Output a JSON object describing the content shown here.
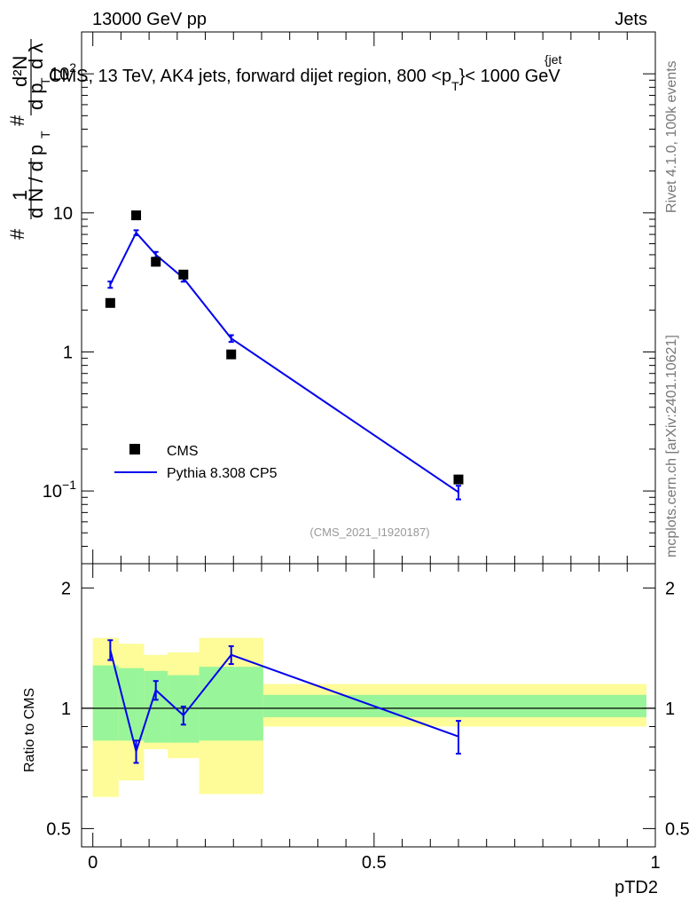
{
  "header": {
    "energy_label": "13000 GeV pp",
    "category_label": "Jets",
    "plot_title": "CMS, 13 TeV, AK4 jets, forward dijet region, 800 <p",
    "plot_title_sup": "{jet",
    "plot_title_sub": "T",
    "plot_title_end": "}< 1000 GeV"
  },
  "sidebar": {
    "rivet_label": "Rivet 4.1.0,  100k events",
    "source_label": "mcplots.cern.ch [arXiv:2401.10621]"
  },
  "watermark": "(CMS_2021_I1920187)",
  "colors": {
    "mc_line": "#0000ee",
    "band_inner": "#99f599",
    "band_outer": "#fdfc98",
    "data_marker": "#000000"
  },
  "chart_data": [
    {
      "type": "scatter",
      "panel": "main",
      "ylabel": "# 1/dN/dp_T # d^2N/dp_T dλ",
      "ylabel_parts": {
        "a": "#",
        "b": "1",
        "c": "d N / d p",
        "d": "T",
        "e": "#",
        "f": "d²N",
        "g": "d p",
        "h": "T",
        "i": "d λ"
      },
      "yscale": "log",
      "ylim": [
        0.03,
        200
      ],
      "xlim": [
        -0.02,
        1.0
      ],
      "y_tick_labels": [
        {
          "value": 0.1,
          "base": "10",
          "exp": "−1"
        },
        {
          "value": 1,
          "base": "1",
          "exp": ""
        },
        {
          "value": 10,
          "base": "10",
          "exp": ""
        },
        {
          "value": 100,
          "base": "10",
          "exp": "2"
        }
      ],
      "legend": [
        "CMS",
        "Pythia 8.308 CP5"
      ],
      "legend_position": "lower-left",
      "series": [
        {
          "name": "CMS",
          "style": "markers",
          "x": [
            0.031,
            0.077,
            0.112,
            0.161,
            0.246,
            0.65
          ],
          "y": [
            2.25,
            9.6,
            4.45,
            3.6,
            0.96,
            0.121
          ]
        },
        {
          "name": "Pythia 8.308 CP5",
          "style": "line",
          "x": [
            0.031,
            0.077,
            0.112,
            0.161,
            0.246,
            0.65
          ],
          "y": [
            3.05,
            7.2,
            5.0,
            3.4,
            1.25,
            0.098
          ],
          "yerr": [
            0.16,
            0.3,
            0.24,
            0.2,
            0.07,
            0.011
          ]
        }
      ]
    },
    {
      "type": "line",
      "panel": "ratio",
      "xlabel": "pTD2",
      "ylabel": "Ratio to CMS",
      "ylim": [
        0.45,
        2.3
      ],
      "xlim": [
        -0.02,
        1.0
      ],
      "x_tick_labels": [
        "0",
        "0.5",
        "1"
      ],
      "x_tick_values": [
        0,
        0.5,
        1
      ],
      "y_tick_labels": [
        "0.5",
        "1",
        "2"
      ],
      "y_tick_values": [
        0.5,
        1,
        2
      ],
      "reference_line": 1,
      "bins": [
        {
          "x0": 0.0,
          "x1": 0.046,
          "inner": [
            0.83,
            1.28
          ],
          "outer": [
            0.6,
            1.5
          ]
        },
        {
          "x0": 0.046,
          "x1": 0.091,
          "inner": [
            0.83,
            1.26
          ],
          "outer": [
            0.66,
            1.45
          ]
        },
        {
          "x0": 0.091,
          "x1": 0.133,
          "inner": [
            0.82,
            1.24
          ],
          "outer": [
            0.79,
            1.36
          ]
        },
        {
          "x0": 0.133,
          "x1": 0.189,
          "inner": [
            0.82,
            1.21
          ],
          "outer": [
            0.75,
            1.38
          ]
        },
        {
          "x0": 0.189,
          "x1": 0.303,
          "inner": [
            0.83,
            1.27
          ],
          "outer": [
            0.61,
            1.5
          ]
        },
        {
          "x0": 0.303,
          "x1": 1.0,
          "inner": [
            0.95,
            1.08
          ],
          "outer": [
            0.9,
            1.15
          ]
        }
      ],
      "series": [
        {
          "name": "Pythia 8.308 CP5",
          "x": [
            0.031,
            0.077,
            0.112,
            0.161,
            0.246,
            0.65
          ],
          "y": [
            1.4,
            0.78,
            1.11,
            0.96,
            1.36,
            0.85
          ],
          "yerr": [
            0.08,
            0.05,
            0.06,
            0.05,
            0.07,
            0.08
          ]
        }
      ]
    }
  ]
}
